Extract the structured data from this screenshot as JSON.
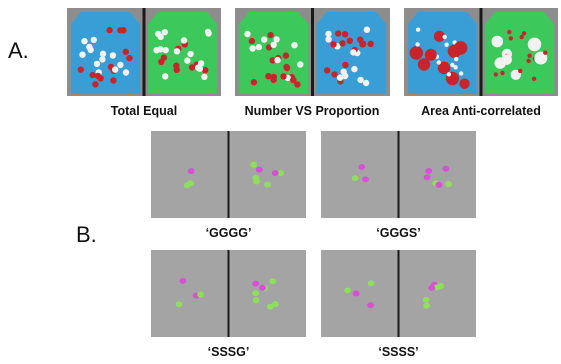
{
  "panel_a": {
    "label": "A.",
    "conditions": [
      {
        "caption": "Total Equal",
        "left_tray": "blue",
        "right_tray": "green"
      },
      {
        "caption": "Number VS Proportion",
        "left_tray": "green",
        "right_tray": "blue"
      },
      {
        "caption": "Area Anti-correlated",
        "left_tray": "blue",
        "right_tray": "green"
      }
    ]
  },
  "panel_b": {
    "label": "B.",
    "conditions": [
      {
        "caption": "‘GGGG’"
      },
      {
        "caption": "‘GGGS’"
      },
      {
        "caption": "‘SSSG’"
      },
      {
        "caption": "‘SSSS’"
      }
    ]
  },
  "colors": {
    "tray_blue": "#3a9ed6",
    "tray_green": "#3cc85a",
    "ball_red": "#c8242c",
    "ball_white": "#f2f2f2",
    "chip_green": "#8ee05a",
    "chip_magenta": "#d84fd8",
    "board_gray": "#a4a4a4",
    "divider": "#1a1a1a"
  }
}
